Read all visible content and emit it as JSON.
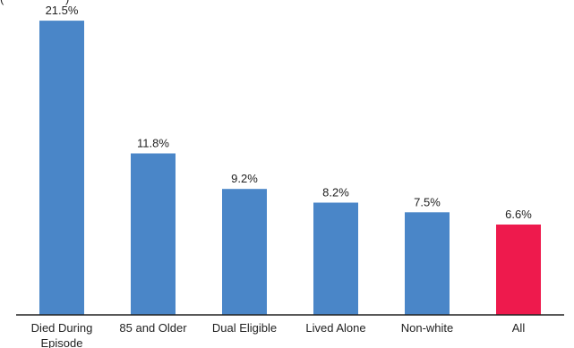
{
  "header": {
    "partial_title": "(                   )"
  },
  "colors": {
    "bar": "#4a86c8",
    "highlight": "#ee1a4d",
    "axis": "#222222",
    "text": "#222222"
  },
  "chart_data": {
    "type": "bar",
    "title": "",
    "xlabel": "",
    "ylabel": "",
    "ylim": [
      0,
      25
    ],
    "grid": false,
    "legend": "none",
    "categories": [
      "Died During Episode",
      "85 and Older",
      "Dual Eligible",
      "Lived Alone",
      "Non-white",
      "All"
    ],
    "category_lines": [
      [
        "Died During",
        "Episode"
      ],
      [
        "85 and Older"
      ],
      [
        "Dual Eligible"
      ],
      [
        "Lived Alone"
      ],
      [
        "Non-white"
      ],
      [
        "All"
      ]
    ],
    "values": [
      21.5,
      11.8,
      9.2,
      8.2,
      7.5,
      6.6
    ],
    "value_labels": [
      "21.5%",
      "11.8%",
      "9.2%",
      "8.2%",
      "7.5%",
      "6.6%"
    ],
    "highlight_index": 5
  }
}
